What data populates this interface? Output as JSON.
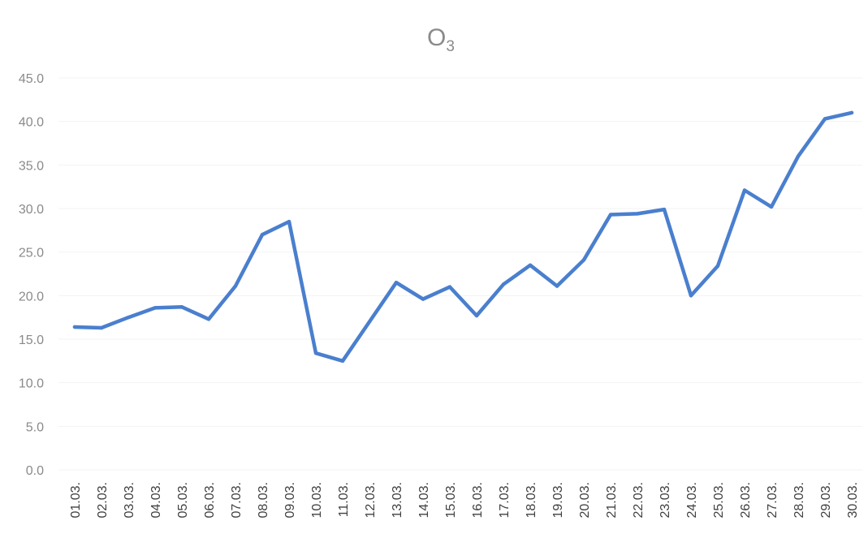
{
  "chart_data": {
    "type": "line",
    "title": "O",
    "title_subscript": "3",
    "xlabel": "",
    "ylabel": "",
    "ylim": [
      0,
      45
    ],
    "y_ticks": [
      "0.0",
      "5.0",
      "10.0",
      "15.0",
      "20.0",
      "25.0",
      "30.0",
      "35.0",
      "40.0",
      "45.0"
    ],
    "grid": false,
    "legend": "none",
    "categories": [
      "01.03.",
      "02.03.",
      "03.03.",
      "04.03.",
      "05.03.",
      "06.03.",
      "07.03.",
      "08.03.",
      "09.03.",
      "10.03.",
      "11.03.",
      "12.03.",
      "13.03.",
      "14.03.",
      "15.03.",
      "16.03.",
      "17.03.",
      "18.03.",
      "19.03.",
      "20.03.",
      "21.03.",
      "22.03.",
      "23.03.",
      "24.03.",
      "25.03.",
      "26.03.",
      "27.03.",
      "28.03.",
      "29.03.",
      "30.03."
    ],
    "series": [
      {
        "color": "#4a7fce",
        "values": [
          16.4,
          16.3,
          17.5,
          18.6,
          18.7,
          17.3,
          21.1,
          27.0,
          28.5,
          13.4,
          12.5,
          17.0,
          21.5,
          19.6,
          21.0,
          17.7,
          21.3,
          23.5,
          21.1,
          24.1,
          29.3,
          29.4,
          29.9,
          20.0,
          23.4,
          32.1,
          30.2,
          36.0,
          40.3,
          41.0
        ]
      }
    ]
  }
}
